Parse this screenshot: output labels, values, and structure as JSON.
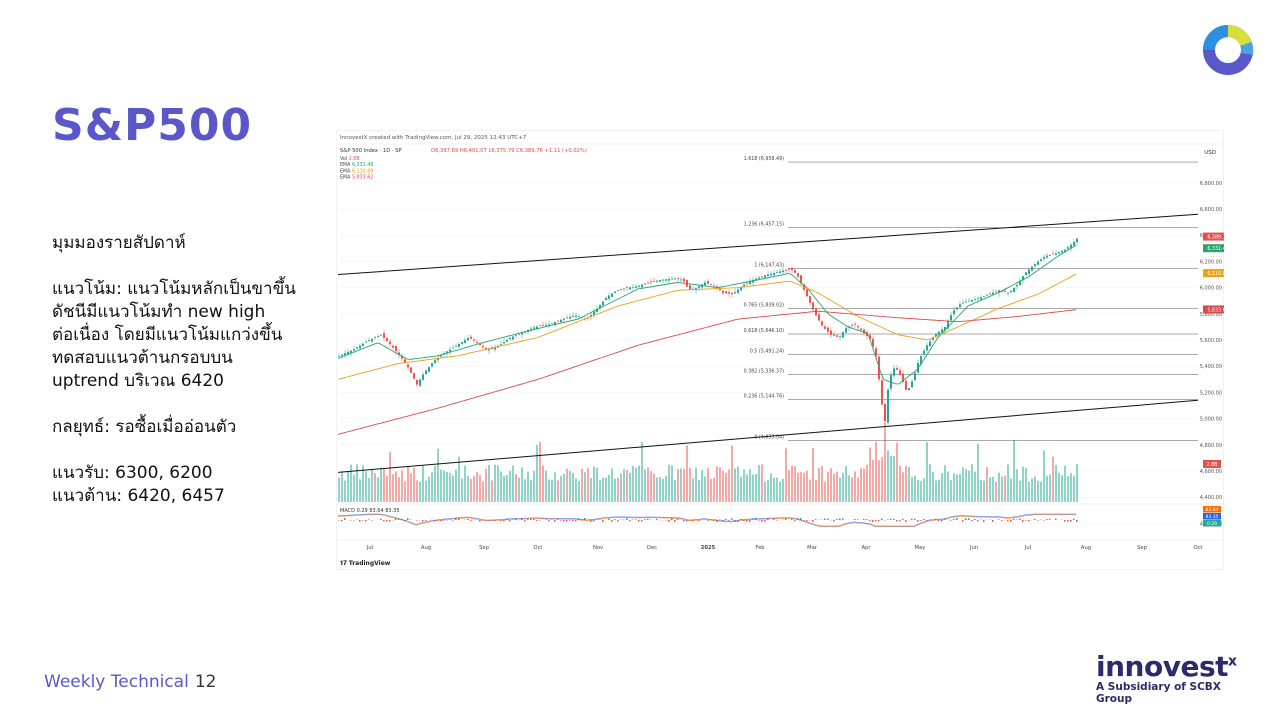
{
  "slide": {
    "title": "S&P500",
    "paragraphs": {
      "p1": "มุมมองรายสัปดาห์",
      "p2": [
        "แนวโน้ม: แนวโน้มหลักเป็นขาขึ้น",
        "ดัชนีมีแนวโน้มทำ new high",
        "ต่อเนื่อง โดยมีแนวโน้มแกว่งขึ้น",
        "ทดสอบแนวต้านกรอบบน",
        "uptrend บริเวณ 6420"
      ],
      "p3": "กลยุทธ์: รอซื้อเมื่ออ่อนตัว",
      "p4": [
        "แนวรับ: 6300, 6200",
        "แนวต้าน: 6420, 6457"
      ]
    },
    "footer": {
      "label": "Weekly Technical",
      "page": "12"
    },
    "brand": {
      "name": "innovest",
      "sup": "x",
      "tagline": "A Subsidiary of SCBX Group"
    },
    "colors": {
      "accent": "#5a58c8",
      "navy": "#2b2b6b"
    }
  },
  "chart_data": {
    "type": "candlestick",
    "header": "InnovestX created with TradingView.com, Jul 29, 2025 12:43 UTC+7",
    "symbol": "S&P 500 Index · 1D · SP",
    "ohlc_text": "O6,397.69 H6,401.07 L6,375.79 C6,389.76 +1.11 (+0.02%)",
    "legend": [
      {
        "label": "Vol",
        "value": "2.8B",
        "color": "#e0524c"
      },
      {
        "label": "EMA",
        "value": "6,331.48",
        "color": "#2aa36e"
      },
      {
        "label": "EMA",
        "value": "6,110.89",
        "color": "#e8a21c"
      },
      {
        "label": "EMA",
        "value": "5,833.62",
        "color": "#d84a4a"
      }
    ],
    "currency": "USD",
    "y_ticks": [
      "6,800.00",
      "6,600.00",
      "6,400.00",
      "6,200.00",
      "6,000.00",
      "5,800.00",
      "5,600.00",
      "5,400.00",
      "5,200.00",
      "5,000.00",
      "4,800.00",
      "4,600.00",
      "4,400.00",
      "4,200.00"
    ],
    "x_ticks": [
      "Jul",
      "Aug",
      "Sep",
      "Oct",
      "Nov",
      "Dec",
      "2025",
      "Feb",
      "Mar",
      "Apr",
      "May",
      "Jun",
      "Jul",
      "Aug",
      "Sep",
      "Oct"
    ],
    "fib_levels": [
      {
        "label": "1.618 (6,958.49)",
        "value": 6958.49
      },
      {
        "label": "1.236 (6,457.15)",
        "value": 6457.15
      },
      {
        "label": "1 (6,147.43)",
        "value": 6147.43
      },
      {
        "label": "0.765 (5,839.02)",
        "value": 5839.02
      },
      {
        "label": "0.618 (5,646.10)",
        "value": 5646.1
      },
      {
        "label": "0.5 (5,491.24)",
        "value": 5491.24
      },
      {
        "label": "0.382 (5,336.37)",
        "value": 5336.37
      },
      {
        "label": "0.236 (5,144.76)",
        "value": 5144.76
      },
      {
        "label": "0 (4,835.04)",
        "value": 4835.04
      }
    ],
    "price_tags": [
      {
        "label": "SPX",
        "value": "6,389.76",
        "color": "#e0524c"
      },
      {
        "label": "",
        "value": "6,331.48",
        "color": "#2aa36e"
      },
      {
        "label": "",
        "value": "6,110.89",
        "color": "#e8a21c"
      },
      {
        "label": "",
        "value": "5,833.62",
        "color": "#d84a4a"
      },
      {
        "label": "",
        "value": "2.8B",
        "color": "#e0524c"
      }
    ],
    "macd": {
      "label": "MACD",
      "values": "0.29 83.64 83.35",
      "tags": [
        "83.64",
        "83.35",
        "0.29"
      ]
    },
    "close_path": [
      [
        0,
        5480
      ],
      [
        15,
        5530
      ],
      [
        30,
        5600
      ],
      [
        42,
        5640
      ],
      [
        52,
        5560
      ],
      [
        62,
        5470
      ],
      [
        70,
        5380
      ],
      [
        78,
        5260
      ],
      [
        85,
        5350
      ],
      [
        95,
        5440
      ],
      [
        105,
        5500
      ],
      [
        118,
        5560
      ],
      [
        130,
        5620
      ],
      [
        138,
        5580
      ],
      [
        148,
        5520
      ],
      [
        160,
        5560
      ],
      [
        172,
        5620
      ],
      [
        184,
        5660
      ],
      [
        196,
        5700
      ],
      [
        210,
        5720
      ],
      [
        224,
        5760
      ],
      [
        236,
        5790
      ],
      [
        248,
        5760
      ],
      [
        258,
        5840
      ],
      [
        268,
        5930
      ],
      [
        278,
        5980
      ],
      [
        288,
        6000
      ],
      [
        298,
        6010
      ],
      [
        310,
        6040
      ],
      [
        322,
        6060
      ],
      [
        334,
        6070
      ],
      [
        344,
        6060
      ],
      [
        350,
        5980
      ],
      [
        358,
        6000
      ],
      [
        366,
        6040
      ],
      [
        376,
        6010
      ],
      [
        384,
        5960
      ],
      [
        394,
        5950
      ],
      [
        404,
        6020
      ],
      [
        414,
        6060
      ],
      [
        424,
        6090
      ],
      [
        434,
        6110
      ],
      [
        444,
        6130
      ],
      [
        452,
        6140
      ],
      [
        458,
        6100
      ],
      [
        464,
        6000
      ],
      [
        470,
        5900
      ],
      [
        476,
        5800
      ],
      [
        484,
        5700
      ],
      [
        492,
        5640
      ],
      [
        500,
        5620
      ],
      [
        508,
        5700
      ],
      [
        516,
        5720
      ],
      [
        524,
        5660
      ],
      [
        532,
        5600
      ],
      [
        538,
        5450
      ],
      [
        542,
        5150
      ],
      [
        546,
        4980
      ],
      [
        550,
        5300
      ],
      [
        556,
        5400
      ],
      [
        562,
        5320
      ],
      [
        568,
        5200
      ],
      [
        574,
        5300
      ],
      [
        580,
        5450
      ],
      [
        588,
        5560
      ],
      [
        596,
        5640
      ],
      [
        606,
        5700
      ],
      [
        614,
        5820
      ],
      [
        622,
        5880
      ],
      [
        630,
        5900
      ],
      [
        640,
        5920
      ],
      [
        650,
        5950
      ],
      [
        660,
        5980
      ],
      [
        670,
        5960
      ],
      [
        678,
        6020
      ],
      [
        686,
        6110
      ],
      [
        696,
        6180
      ],
      [
        706,
        6240
      ],
      [
        716,
        6260
      ],
      [
        726,
        6290
      ],
      [
        734,
        6340
      ],
      [
        740,
        6389.76
      ]
    ],
    "ema_fast": [
      [
        0,
        5460
      ],
      [
        40,
        5580
      ],
      [
        70,
        5450
      ],
      [
        100,
        5480
      ],
      [
        140,
        5570
      ],
      [
        190,
        5670
      ],
      [
        240,
        5760
      ],
      [
        300,
        5990
      ],
      [
        340,
        6040
      ],
      [
        380,
        6000
      ],
      [
        420,
        6060
      ],
      [
        452,
        6110
      ],
      [
        470,
        5990
      ],
      [
        490,
        5800
      ],
      [
        510,
        5700
      ],
      [
        530,
        5650
      ],
      [
        545,
        5300
      ],
      [
        560,
        5260
      ],
      [
        580,
        5380
      ],
      [
        600,
        5620
      ],
      [
        630,
        5860
      ],
      [
        660,
        5960
      ],
      [
        690,
        6080
      ],
      [
        720,
        6240
      ],
      [
        740,
        6331.48
      ]
    ],
    "ema_mid": [
      [
        0,
        5300
      ],
      [
        60,
        5420
      ],
      [
        120,
        5480
      ],
      [
        200,
        5620
      ],
      [
        280,
        5860
      ],
      [
        340,
        5980
      ],
      [
        400,
        6000
      ],
      [
        452,
        6050
      ],
      [
        480,
        5960
      ],
      [
        520,
        5780
      ],
      [
        560,
        5640
      ],
      [
        590,
        5600
      ],
      [
        620,
        5700
      ],
      [
        660,
        5840
      ],
      [
        700,
        5950
      ],
      [
        740,
        6110.89
      ]
    ],
    "ema_slow": [
      [
        0,
        4880
      ],
      [
        100,
        5080
      ],
      [
        200,
        5300
      ],
      [
        300,
        5560
      ],
      [
        400,
        5760
      ],
      [
        480,
        5820
      ],
      [
        560,
        5770
      ],
      [
        620,
        5740
      ],
      [
        680,
        5780
      ],
      [
        740,
        5833.62
      ]
    ],
    "trendlines": [
      {
        "from": [
          0,
          6100
        ],
        "to": [
          860,
          6560
        ]
      },
      {
        "from": [
          0,
          4590
        ],
        "to": [
          860,
          5140
        ]
      }
    ]
  }
}
